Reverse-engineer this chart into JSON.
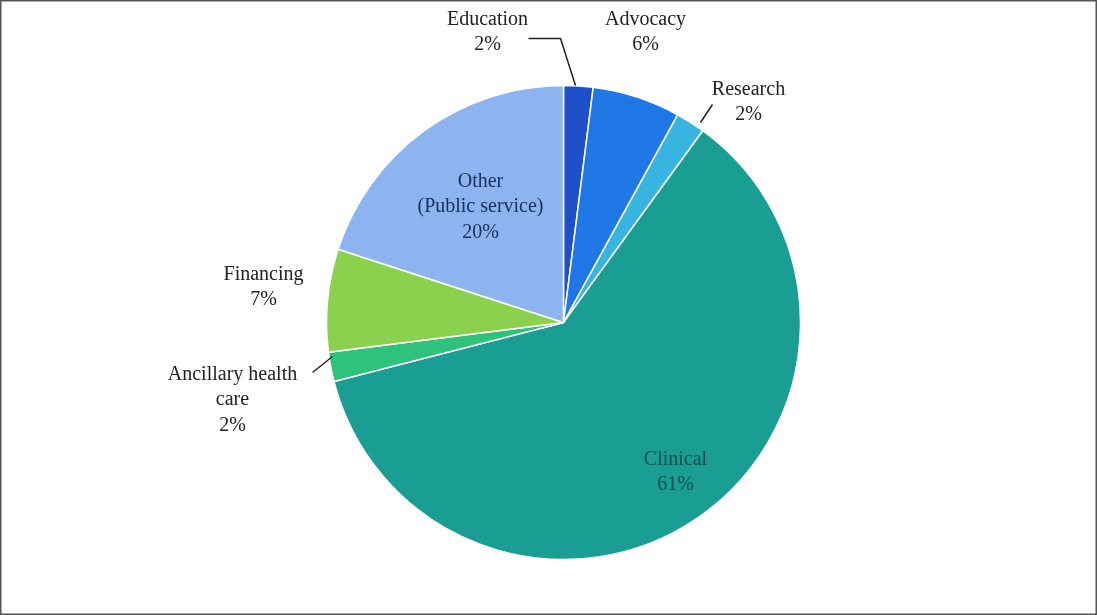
{
  "chart_data": {
    "type": "pie",
    "categories": [
      "Education",
      "Advocacy",
      "Research",
      "Clinical",
      "Ancillary health care",
      "Financing",
      "Other (Public service)"
    ],
    "values": [
      2,
      6,
      2,
      61,
      2,
      7,
      20
    ],
    "value_labels": [
      "2%",
      "6%",
      "2%",
      "61%",
      "2%",
      "7%",
      "20%"
    ],
    "colors": [
      "#1e50c8",
      "#1f78e6",
      "#37b4e0",
      "#1a9e94",
      "#2ec27a",
      "#8cd14e",
      "#8db4ee"
    ]
  }
}
